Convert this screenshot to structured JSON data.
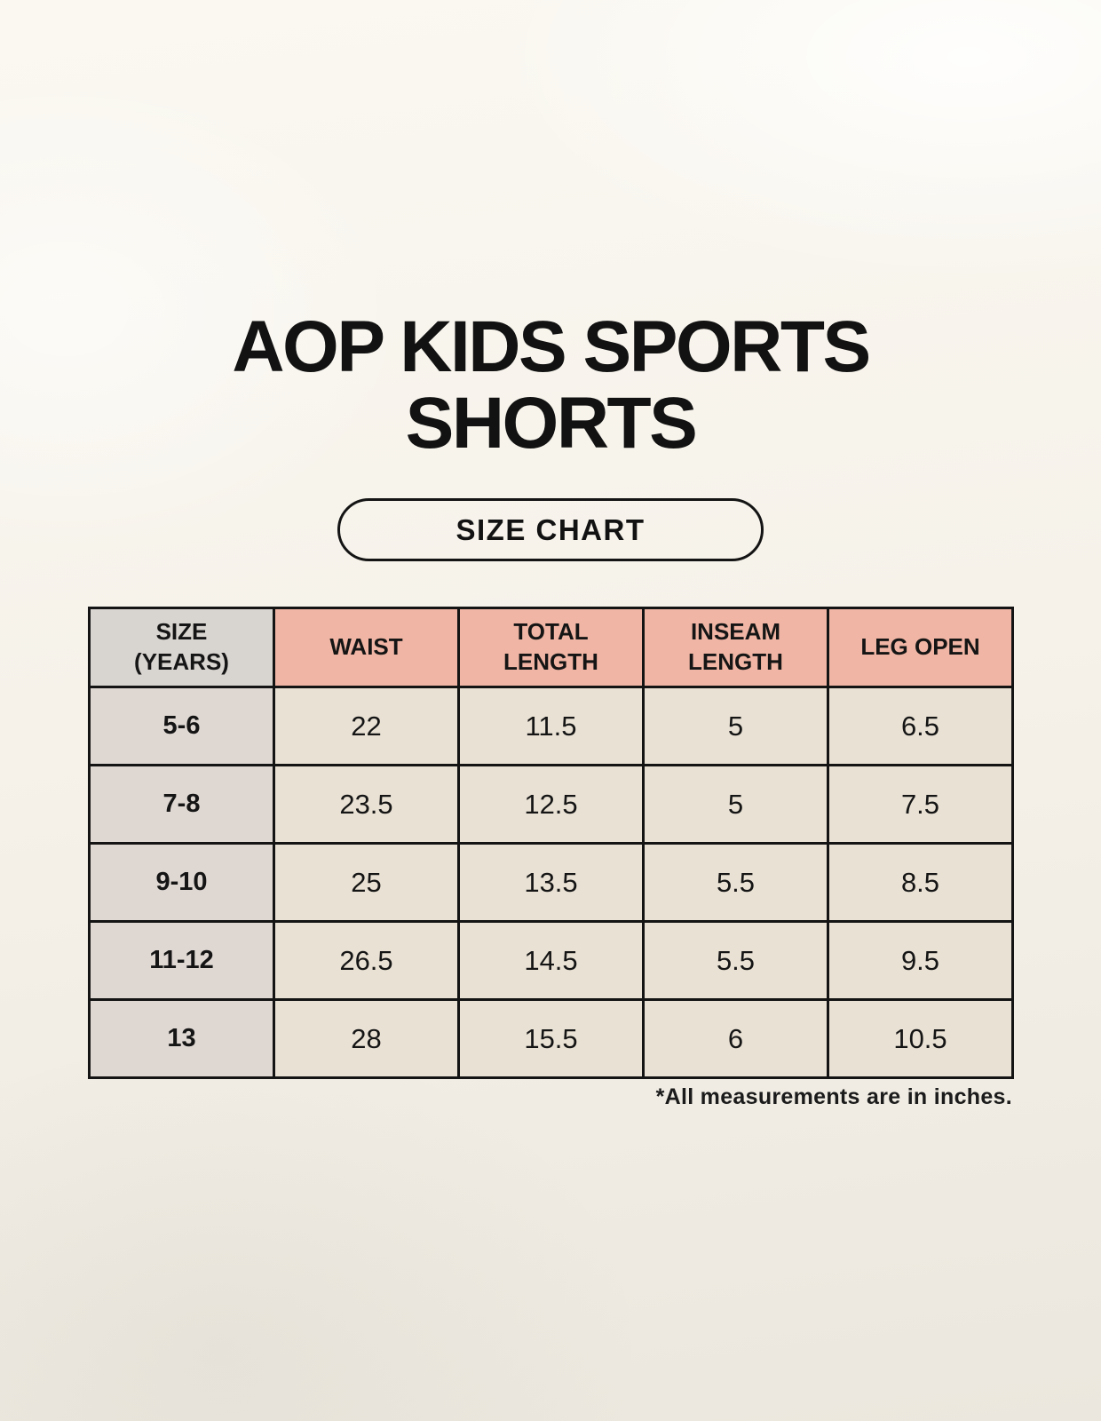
{
  "page": {
    "title_line1": "AOP KIDS SPORTS",
    "title_line2": "SHORTS",
    "badge_label": "SIZE CHART",
    "footnote": "*All measurements are in inches."
  },
  "colors": {
    "background_top": "#faf8f1",
    "background_bottom": "#ebe7de",
    "header_first_col_bg": "#d8d4d0",
    "header_accent_bg": "#f0b5a4",
    "body_first_col_bg": "#ded7d2",
    "body_cell_bg": "#e9e1d4",
    "border": "#141414",
    "text": "#151515"
  },
  "table": {
    "headers": [
      "SIZE\n(YEARS)",
      "WAIST",
      "TOTAL\nLENGTH",
      "INSEAM\nLENGTH",
      "LEG OPEN"
    ],
    "rows": [
      [
        "5-6",
        "22",
        "11.5",
        "5",
        "6.5"
      ],
      [
        "7-8",
        "23.5",
        "12.5",
        "5",
        "7.5"
      ],
      [
        "9-10",
        "25",
        "13.5",
        "5.5",
        "8.5"
      ],
      [
        "11-12",
        "26.5",
        "14.5",
        "5.5",
        "9.5"
      ],
      [
        "13",
        "28",
        "15.5",
        "6",
        "10.5"
      ]
    ]
  },
  "chart_data": {
    "type": "table",
    "title": "AOP KIDS SPORTS SHORTS — SIZE CHART",
    "units": "inches",
    "columns": [
      "SIZE (YEARS)",
      "WAIST",
      "TOTAL LENGTH",
      "INSEAM LENGTH",
      "LEG OPEN"
    ],
    "rows": [
      {
        "size_years": "5-6",
        "waist": 22,
        "total_length": 11.5,
        "inseam_length": 5,
        "leg_open": 6.5
      },
      {
        "size_years": "7-8",
        "waist": 23.5,
        "total_length": 12.5,
        "inseam_length": 5,
        "leg_open": 7.5
      },
      {
        "size_years": "9-10",
        "waist": 25,
        "total_length": 13.5,
        "inseam_length": 5.5,
        "leg_open": 8.5
      },
      {
        "size_years": "11-12",
        "waist": 26.5,
        "total_length": 14.5,
        "inseam_length": 5.5,
        "leg_open": 9.5
      },
      {
        "size_years": "13",
        "waist": 28,
        "total_length": 15.5,
        "inseam_length": 6,
        "leg_open": 10.5
      }
    ],
    "note": "*All measurements are in inches."
  }
}
